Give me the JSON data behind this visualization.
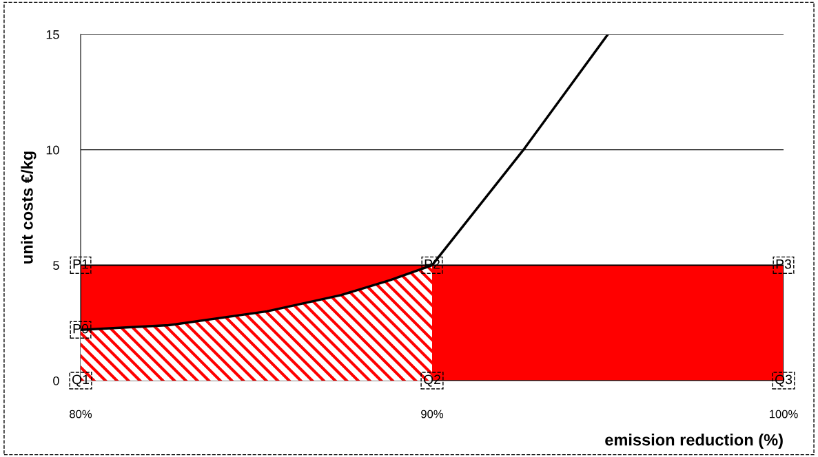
{
  "chart_data": {
    "type": "area",
    "xlabel": "emission reduction (%)",
    "ylabel": "unit costs €/kg",
    "xlim": [
      80,
      100
    ],
    "ylim": [
      0,
      15
    ],
    "xticks": [
      {
        "value": 80,
        "label": "80%"
      },
      {
        "value": 90,
        "label": "90%"
      },
      {
        "value": 100,
        "label": "100%"
      }
    ],
    "yticks": [
      0,
      5,
      10,
      15
    ],
    "grid": "y",
    "series": [
      {
        "color": "#ff0000",
        "x": [
          80,
          100
        ],
        "values": [
          5,
          5
        ]
      },
      {
        "color": "#ff0000",
        "x": [
          80,
          82.5,
          85.3,
          87.4,
          88.8,
          90
        ],
        "values": [
          2.2,
          2.4,
          3.0,
          3.7,
          4.35,
          5
        ]
      },
      {
        "type": "line",
        "color": "#000000",
        "x": [
          80,
          82.5,
          85.3,
          87.4,
          88.8,
          90,
          92.6,
          95
        ],
        "values": [
          2.2,
          2.4,
          3.0,
          3.7,
          4.35,
          5,
          10,
          15
        ]
      }
    ],
    "annotations": [
      {
        "text": "P0",
        "x": 80,
        "y": 2.2
      },
      {
        "text": "P1",
        "x": 80,
        "y": 5
      },
      {
        "text": "P2",
        "x": 90,
        "y": 5
      },
      {
        "text": "P3",
        "x": 100,
        "y": 5
      },
      {
        "text": "Q1",
        "x": 80,
        "y": 0
      },
      {
        "text": "Q2",
        "x": 90,
        "y": 0
      },
      {
        "text": "Q3",
        "x": 100,
        "y": 0
      }
    ]
  }
}
